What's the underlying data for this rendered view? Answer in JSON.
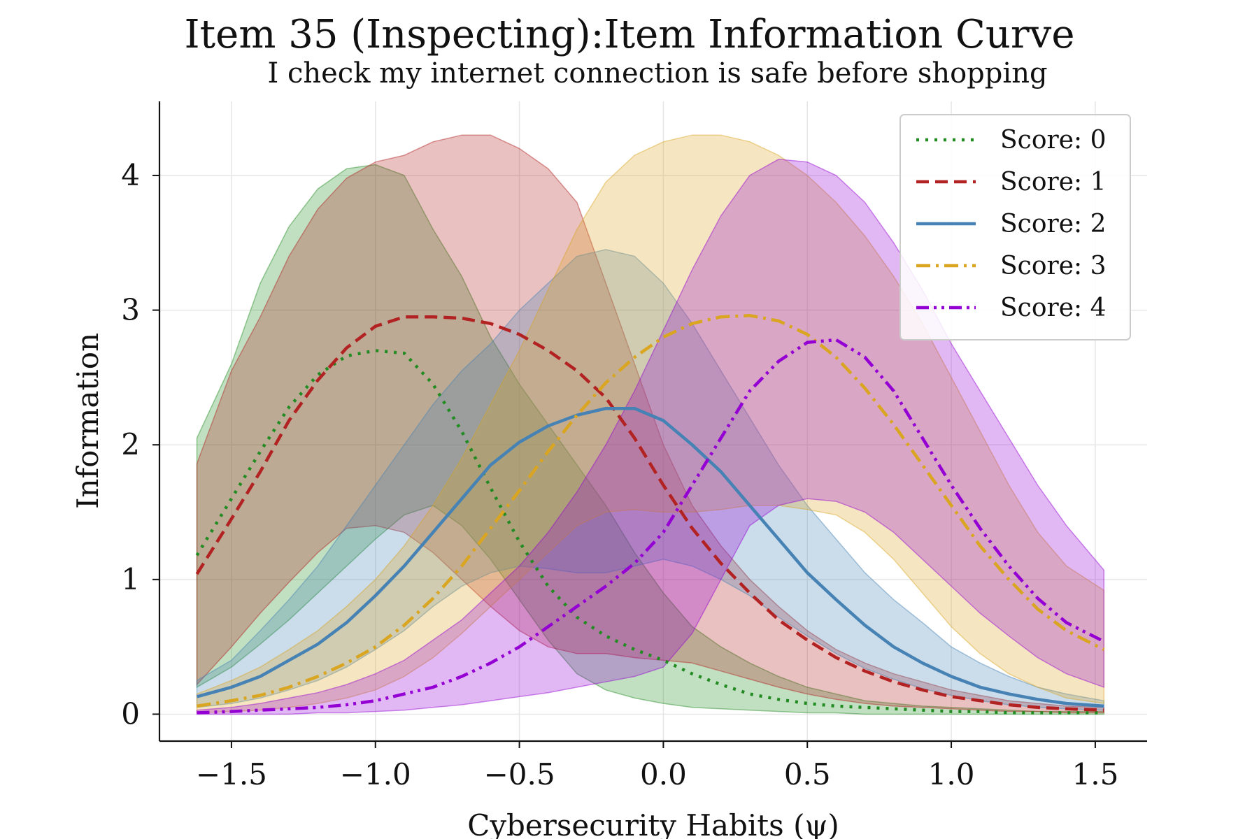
{
  "chart_data": {
    "type": "line",
    "title": "Item 35 (Inspecting):Item Information Curve",
    "subtitle": "I check my internet connection is safe before shopping",
    "xlabel": "Cybersecurity Habits (ψ)",
    "ylabel": "Information",
    "xlim": [
      -1.75,
      1.68
    ],
    "ylim": [
      -0.2,
      4.55
    ],
    "x_ticks": [
      -1.5,
      -1.0,
      -0.5,
      0.0,
      0.5,
      1.0,
      1.5
    ],
    "x_tick_labels": [
      "−1.5",
      "−1.0",
      "−0.5",
      "0.0",
      "0.5",
      "1.0",
      "1.5"
    ],
    "y_ticks": [
      0,
      1,
      2,
      3,
      4
    ],
    "y_tick_labels": [
      "0",
      "1",
      "2",
      "3",
      "4"
    ],
    "grid": true,
    "legend_position": "top-right",
    "x": [
      -1.62,
      -1.5,
      -1.4,
      -1.3,
      -1.2,
      -1.1,
      -1.0,
      -0.9,
      -0.8,
      -0.7,
      -0.6,
      -0.5,
      -0.4,
      -0.3,
      -0.2,
      -0.1,
      0.0,
      0.1,
      0.2,
      0.3,
      0.4,
      0.5,
      0.6,
      0.7,
      0.8,
      0.9,
      1.0,
      1.1,
      1.2,
      1.3,
      1.4,
      1.53
    ],
    "series": [
      {
        "name": "Score: 0",
        "color": "#228B22",
        "dash": "dotted",
        "values": [
          1.18,
          1.6,
          1.95,
          2.28,
          2.52,
          2.66,
          2.7,
          2.68,
          2.45,
          2.1,
          1.68,
          1.28,
          0.95,
          0.72,
          0.58,
          0.48,
          0.4,
          0.3,
          0.22,
          0.15,
          0.11,
          0.08,
          0.06,
          0.05,
          0.04,
          0.03,
          0.02,
          0.02,
          0.01,
          0.01,
          0.01,
          0.01
        ],
        "upper": [
          2.05,
          2.6,
          3.2,
          3.62,
          3.9,
          4.05,
          4.08,
          4.0,
          3.6,
          3.25,
          2.8,
          2.45,
          2.15,
          1.85,
          1.55,
          1.2,
          0.9,
          0.65,
          0.5,
          0.38,
          0.28,
          0.2,
          0.15,
          0.1,
          0.08,
          0.06,
          0.05,
          0.04,
          0.03,
          0.02,
          0.02,
          0.02
        ],
        "lower": [
          0.2,
          0.35,
          0.52,
          0.7,
          0.9,
          1.1,
          1.3,
          1.48,
          1.55,
          1.4,
          1.15,
          0.85,
          0.55,
          0.3,
          0.18,
          0.12,
          0.08,
          0.05,
          0.04,
          0.03,
          0.02,
          0.01,
          0.01,
          0.0,
          0.0,
          0.0,
          0.0,
          0.0,
          0.0,
          0.0,
          0.0,
          0.0
        ]
      },
      {
        "name": "Score: 1",
        "color": "#B22222",
        "dash": "dashed",
        "values": [
          1.04,
          1.45,
          1.8,
          2.18,
          2.48,
          2.72,
          2.88,
          2.95,
          2.95,
          2.94,
          2.9,
          2.82,
          2.7,
          2.55,
          2.35,
          2.05,
          1.7,
          1.38,
          1.12,
          0.9,
          0.7,
          0.55,
          0.42,
          0.32,
          0.24,
          0.18,
          0.13,
          0.1,
          0.07,
          0.05,
          0.04,
          0.03
        ],
        "upper": [
          1.86,
          2.55,
          2.95,
          3.4,
          3.75,
          3.98,
          4.1,
          4.15,
          4.25,
          4.3,
          4.3,
          4.2,
          4.05,
          3.8,
          3.2,
          2.6,
          2.0,
          1.55,
          1.25,
          1.0,
          0.8,
          0.62,
          0.48,
          0.38,
          0.3,
          0.24,
          0.18,
          0.14,
          0.1,
          0.08,
          0.06,
          0.05
        ],
        "lower": [
          0.22,
          0.5,
          0.75,
          0.98,
          1.2,
          1.38,
          1.4,
          1.35,
          1.2,
          1.0,
          0.8,
          0.62,
          0.5,
          0.45,
          0.45,
          0.42,
          0.4,
          0.38,
          0.32,
          0.26,
          0.2,
          0.15,
          0.11,
          0.08,
          0.06,
          0.05,
          0.04,
          0.03,
          0.02,
          0.02,
          0.01,
          0.01
        ]
      },
      {
        "name": "Score: 2",
        "color": "#4682B4",
        "dash": "solid",
        "values": [
          0.13,
          0.2,
          0.28,
          0.4,
          0.52,
          0.68,
          0.88,
          1.1,
          1.35,
          1.6,
          1.85,
          2.02,
          2.14,
          2.22,
          2.27,
          2.27,
          2.18,
          2.0,
          1.8,
          1.55,
          1.3,
          1.05,
          0.85,
          0.66,
          0.5,
          0.38,
          0.28,
          0.2,
          0.15,
          0.11,
          0.08,
          0.06
        ],
        "upper": [
          0.25,
          0.4,
          0.62,
          0.85,
          1.1,
          1.4,
          1.7,
          2.0,
          2.3,
          2.55,
          2.75,
          3.0,
          3.2,
          3.4,
          3.45,
          3.4,
          3.2,
          2.9,
          2.55,
          2.2,
          1.85,
          1.55,
          1.3,
          1.05,
          0.85,
          0.68,
          0.5,
          0.38,
          0.28,
          0.2,
          0.15,
          0.1
        ],
        "lower": [
          0.05,
          0.08,
          0.12,
          0.18,
          0.25,
          0.35,
          0.48,
          0.62,
          0.8,
          0.95,
          1.05,
          1.1,
          1.08,
          1.05,
          1.05,
          1.1,
          1.15,
          1.1,
          1.0,
          0.88,
          0.72,
          0.58,
          0.45,
          0.34,
          0.26,
          0.19,
          0.14,
          0.1,
          0.07,
          0.05,
          0.04,
          0.03
        ]
      },
      {
        "name": "Score: 3",
        "color": "#DAA520",
        "dash": "dashdot",
        "values": [
          0.06,
          0.1,
          0.14,
          0.2,
          0.28,
          0.38,
          0.5,
          0.66,
          0.86,
          1.1,
          1.38,
          1.66,
          1.95,
          2.22,
          2.46,
          2.65,
          2.8,
          2.9,
          2.95,
          2.96,
          2.92,
          2.82,
          2.65,
          2.42,
          2.15,
          1.85,
          1.55,
          1.25,
          1.0,
          0.78,
          0.62,
          0.48
        ],
        "upper": [
          0.15,
          0.25,
          0.35,
          0.48,
          0.62,
          0.8,
          1.0,
          1.25,
          1.55,
          1.9,
          2.3,
          2.7,
          3.15,
          3.6,
          3.95,
          4.15,
          4.25,
          4.3,
          4.3,
          4.25,
          4.15,
          4.0,
          3.8,
          3.55,
          3.25,
          2.9,
          2.5,
          2.1,
          1.7,
          1.35,
          1.1,
          0.92
        ],
        "lower": [
          0.01,
          0.02,
          0.03,
          0.05,
          0.08,
          0.12,
          0.18,
          0.28,
          0.42,
          0.6,
          0.8,
          1.0,
          1.2,
          1.4,
          1.5,
          1.52,
          1.5,
          1.5,
          1.52,
          1.55,
          1.55,
          1.52,
          1.48,
          1.35,
          1.15,
          0.9,
          0.65,
          0.45,
          0.3,
          0.2,
          0.12,
          0.08
        ]
      },
      {
        "name": "Score: 4",
        "color": "#9400D3",
        "dash": "dashdotdot",
        "values": [
          0.01,
          0.02,
          0.03,
          0.04,
          0.05,
          0.07,
          0.1,
          0.15,
          0.2,
          0.28,
          0.38,
          0.5,
          0.65,
          0.8,
          0.95,
          1.12,
          1.35,
          1.7,
          2.05,
          2.4,
          2.62,
          2.76,
          2.78,
          2.65,
          2.4,
          2.05,
          1.7,
          1.38,
          1.1,
          0.86,
          0.68,
          0.54
        ],
        "upper": [
          0.03,
          0.05,
          0.08,
          0.12,
          0.16,
          0.22,
          0.3,
          0.4,
          0.55,
          0.7,
          0.9,
          1.1,
          1.35,
          1.65,
          2.0,
          2.4,
          2.85,
          3.3,
          3.7,
          4.0,
          4.12,
          4.1,
          4.0,
          3.8,
          3.5,
          3.15,
          2.75,
          2.4,
          2.05,
          1.7,
          1.4,
          1.07
        ],
        "lower": [
          0.0,
          0.0,
          0.0,
          0.0,
          0.01,
          0.01,
          0.02,
          0.03,
          0.05,
          0.07,
          0.1,
          0.13,
          0.16,
          0.2,
          0.24,
          0.28,
          0.35,
          0.6,
          1.0,
          1.4,
          1.55,
          1.6,
          1.58,
          1.5,
          1.35,
          1.15,
          0.95,
          0.75,
          0.58,
          0.42,
          0.3,
          0.2
        ]
      }
    ]
  }
}
